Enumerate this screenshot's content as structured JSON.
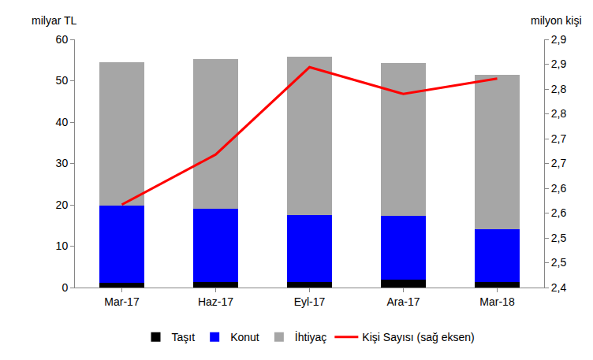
{
  "chart_data": {
    "type": "bar",
    "stacked": true,
    "grid": false,
    "legend": "bottom",
    "ylabel": "milyar TL",
    "y2label": "milyon kişi",
    "categories": [
      "Mar-17",
      "Haz-17",
      "Eyl-17",
      "Ara-17",
      "Mar-18"
    ],
    "ylim": [
      0,
      60
    ],
    "yticks": [
      0,
      10,
      20,
      30,
      40,
      50,
      60
    ],
    "y2lim": [
      2.4,
      2.9
    ],
    "y2ticks": [
      {
        "value": 2.4,
        "label": "2,4"
      },
      {
        "value": 2.45,
        "label": "2,5"
      },
      {
        "value": 2.5,
        "label": "2,5"
      },
      {
        "value": 2.55,
        "label": "2,6"
      },
      {
        "value": 2.6,
        "label": "2,6"
      },
      {
        "value": 2.65,
        "label": "2,7"
      },
      {
        "value": 2.7,
        "label": "2,7"
      },
      {
        "value": 2.75,
        "label": "2,8"
      },
      {
        "value": 2.8,
        "label": "2,8"
      },
      {
        "value": 2.85,
        "label": "2,9"
      },
      {
        "value": 2.9,
        "label": "2,9"
      }
    ],
    "series": [
      {
        "name": "Taşıt",
        "type": "bar",
        "color": "#000000",
        "values": [
          1.1,
          1.3,
          1.3,
          1.9,
          1.3
        ]
      },
      {
        "name": "Konut",
        "type": "bar",
        "color": "#0000FF",
        "values": [
          18.7,
          17.7,
          16.2,
          15.4,
          12.8
        ]
      },
      {
        "name": "İhtiyaç",
        "type": "bar",
        "color": "#A6A6A6",
        "values": [
          34.7,
          36.2,
          38.3,
          37.0,
          37.3
        ]
      },
      {
        "name": "Kişi Sayısı (sağ eksen)",
        "type": "line",
        "axis": "y2",
        "color": "#FF0000",
        "line_style": "solid",
        "values": [
          2.567,
          2.668,
          2.844,
          2.79,
          2.821
        ]
      }
    ]
  }
}
